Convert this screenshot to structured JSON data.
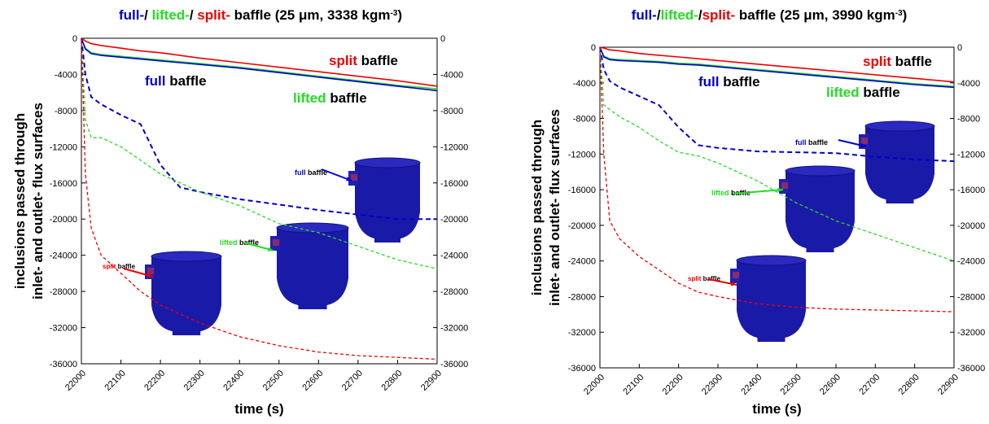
{
  "chart_data": [
    {
      "type": "line",
      "title_parts": [
        {
          "text": "full-",
          "color": "#0000cc"
        },
        {
          "text": "/ "
        },
        {
          "text": "lifted-",
          "color": "#22dd22"
        },
        {
          "text": "/ "
        },
        {
          "text": "split-",
          "color": "#ee0000"
        },
        {
          "text": " baffle (25 μm, 3338 kgm"
        },
        {
          "text": "-3",
          "sup": true
        },
        {
          "text": ")"
        }
      ],
      "x_label": "time (s)",
      "y_label": [
        "inclusions passed through",
        "inlet- and outlet- flux surfaces"
      ],
      "x": [
        22000,
        22010,
        22025,
        22050,
        22100,
        22150,
        22200,
        22250,
        22300,
        22400,
        22500,
        22600,
        22700,
        22800,
        22900
      ],
      "xlim": [
        22000,
        22900
      ],
      "xticks": [
        22000,
        22100,
        22200,
        22300,
        22400,
        22500,
        22600,
        22700,
        22800,
        22900
      ],
      "ylim": [
        -36000,
        0
      ],
      "yticks": [
        -36000,
        -32000,
        -28000,
        -24000,
        -20000,
        -16000,
        -12000,
        -8000,
        -4000,
        0
      ],
      "series": [
        {
          "color": "#ee0000",
          "dash": false,
          "values": [
            0,
            -300,
            -600,
            -800,
            -1100,
            -1400,
            -1600,
            -1900,
            -2200,
            -2700,
            -3200,
            -3700,
            -4200,
            -4700,
            -5300
          ]
        },
        {
          "color": "#22dd22",
          "dash": false,
          "values": [
            0,
            -1100,
            -1600,
            -1800,
            -2000,
            -2200,
            -2400,
            -2600,
            -2800,
            -3200,
            -3700,
            -4200,
            -4700,
            -5200,
            -5600
          ]
        },
        {
          "color": "#0000cc",
          "dash": false,
          "values": [
            0,
            -1200,
            -1700,
            -1900,
            -2100,
            -2300,
            -2500,
            -2700,
            -2900,
            -3300,
            -3800,
            -4300,
            -4800,
            -5300,
            -5800
          ]
        },
        {
          "color": "#0000cc",
          "dash": true,
          "values": [
            0,
            -4000,
            -6500,
            -7300,
            -8500,
            -9500,
            -14000,
            -16500,
            -17000,
            -17800,
            -18400,
            -19000,
            -19500,
            -20000,
            -20000
          ]
        },
        {
          "color": "#22dd22",
          "dash": true,
          "values": [
            0,
            -9000,
            -11000,
            -11000,
            -12000,
            -13500,
            -15000,
            -16000,
            -17000,
            -18500,
            -20500,
            -21500,
            -23000,
            -24500,
            -25500
          ]
        },
        {
          "color": "#ee0000",
          "dash": true,
          "values": [
            0,
            -15000,
            -21000,
            -24000,
            -26000,
            -28000,
            -29500,
            -30500,
            -31500,
            -33000,
            -34000,
            -34700,
            -35100,
            -35300,
            -35500
          ]
        }
      ],
      "annotations": [
        {
          "word": "split",
          "rest": " baffle",
          "color": "#ee0000"
        },
        {
          "word": "full",
          "rest": " baffle",
          "color": "#0000cc"
        },
        {
          "word": "lifted",
          "rest": " baffle",
          "color": "#22dd22"
        }
      ],
      "tank_labels": [
        {
          "word": "full",
          "rest": " baffle",
          "color": "#0000cc"
        },
        {
          "word": "lifted",
          "rest": " baffle",
          "color": "#22dd22"
        },
        {
          "word": "split",
          "rest": " baffle",
          "color": "#ee0000"
        }
      ]
    },
    {
      "type": "line",
      "title_parts": [
        {
          "text": "full-",
          "color": "#0000cc"
        },
        {
          "text": "/"
        },
        {
          "text": "lifted-",
          "color": "#22dd22"
        },
        {
          "text": "/"
        },
        {
          "text": "split-",
          "color": "#ee0000"
        },
        {
          "text": " baffle (25 μm, 3990 kgm"
        },
        {
          "text": "-3",
          "sup": true
        },
        {
          "text": ")"
        }
      ],
      "x_label": "time (s)",
      "y_label": [
        "inclusions passed through",
        "inlet- and outlet- flux surfaces"
      ],
      "x": [
        22000,
        22010,
        22025,
        22050,
        22100,
        22150,
        22200,
        22250,
        22300,
        22400,
        22500,
        22600,
        22700,
        22800,
        22900
      ],
      "xlim": [
        22000,
        22900
      ],
      "xticks": [
        22000,
        22100,
        22200,
        22300,
        22400,
        22500,
        22600,
        22700,
        22800,
        22900
      ],
      "ylim": [
        -36000,
        0
      ],
      "yticks": [
        -36000,
        -32000,
        -28000,
        -24000,
        -20000,
        -16000,
        -12000,
        -8000,
        -4000,
        0
      ],
      "series": [
        {
          "color": "#ee0000",
          "dash": false,
          "values": [
            0,
            -100,
            -300,
            -400,
            -700,
            -900,
            -1100,
            -1300,
            -1500,
            -1900,
            -2300,
            -2700,
            -3100,
            -3500,
            -3900
          ]
        },
        {
          "color": "#22dd22",
          "dash": false,
          "values": [
            0,
            -1000,
            -1300,
            -1400,
            -1500,
            -1600,
            -1800,
            -1900,
            -2100,
            -2500,
            -2900,
            -3300,
            -3700,
            -4100,
            -4400
          ]
        },
        {
          "color": "#0000cc",
          "dash": false,
          "values": [
            0,
            -1100,
            -1400,
            -1500,
            -1600,
            -1700,
            -1900,
            -2000,
            -2200,
            -2600,
            -3000,
            -3400,
            -3800,
            -4200,
            -4500
          ]
        },
        {
          "color": "#0000cc",
          "dash": true,
          "values": [
            0,
            -2500,
            -3800,
            -4500,
            -5500,
            -6500,
            -9000,
            -11000,
            -11300,
            -11700,
            -11800,
            -11900,
            -12300,
            -12600,
            -12800
          ]
        },
        {
          "color": "#22dd22",
          "dash": true,
          "values": [
            0,
            -6500,
            -7000,
            -7800,
            -9000,
            -10500,
            -11800,
            -12200,
            -13000,
            -15000,
            -17500,
            -19500,
            -21000,
            -22500,
            -24000
          ]
        },
        {
          "color": "#ee0000",
          "dash": true,
          "values": [
            0,
            -12000,
            -19500,
            -21500,
            -23500,
            -25000,
            -26500,
            -27500,
            -28000,
            -28800,
            -29200,
            -29400,
            -29500,
            -29600,
            -29700
          ]
        }
      ],
      "annotations": [
        {
          "word": "split",
          "rest": " baffle",
          "color": "#ee0000"
        },
        {
          "word": "full",
          "rest": " baffle",
          "color": "#0000cc"
        },
        {
          "word": "lifted",
          "rest": " baffle",
          "color": "#22dd22"
        }
      ],
      "tank_labels": [
        {
          "word": "full",
          "rest": " baffle",
          "color": "#0000cc"
        },
        {
          "word": "lifted",
          "rest": " baffle",
          "color": "#22dd22"
        },
        {
          "word": "split",
          "rest": " baffle",
          "color": "#ee0000"
        }
      ]
    }
  ]
}
